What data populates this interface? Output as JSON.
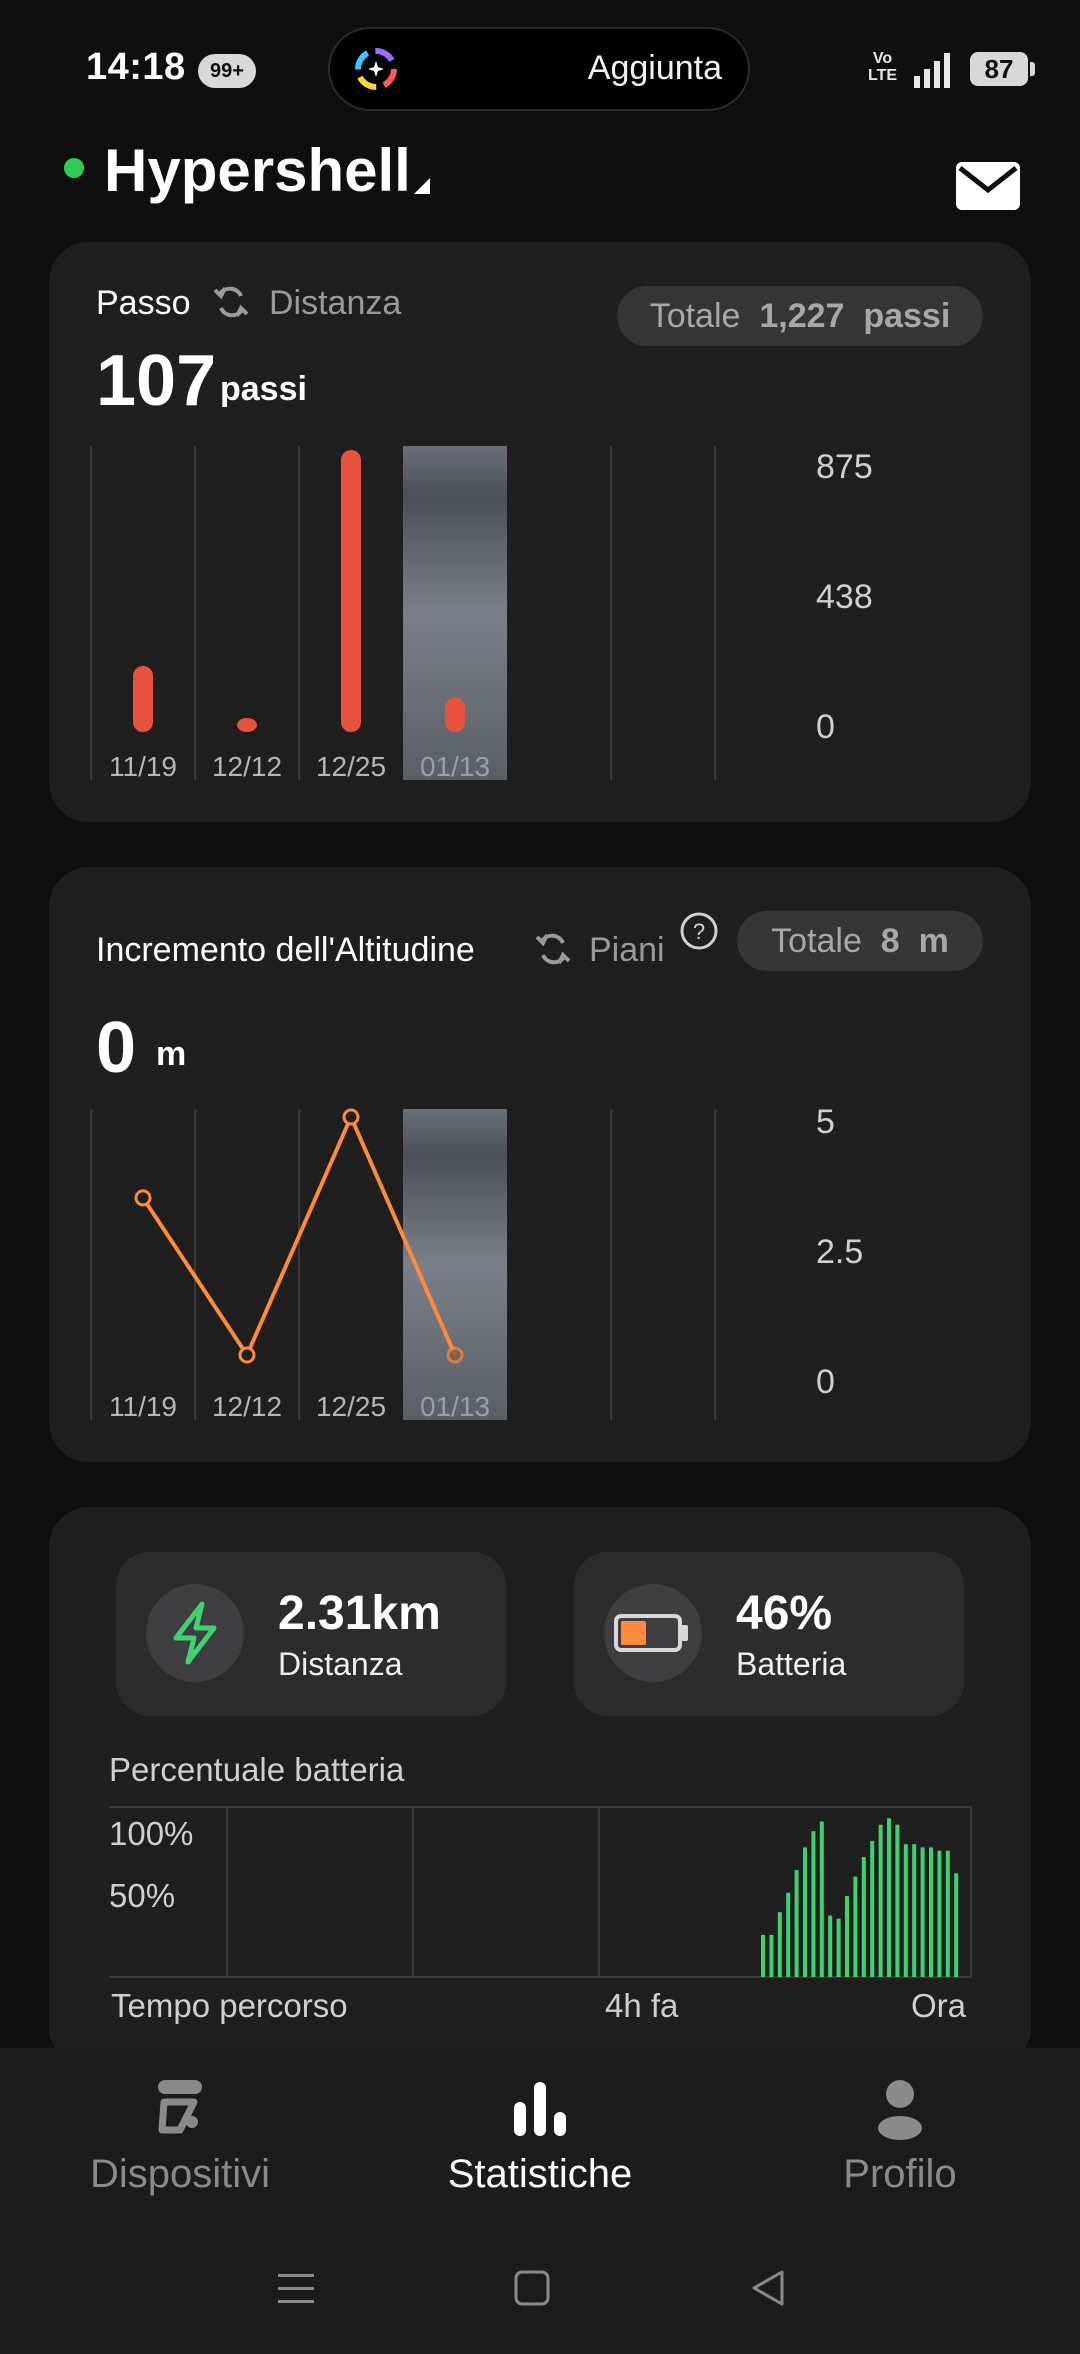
{
  "status_bar": {
    "time": "14:18",
    "notification_badge": "99+",
    "island_label": "Aggiunta",
    "network_label": "Vo\nLTE",
    "battery_level": "87"
  },
  "header": {
    "device_name": "Hypershell",
    "online_color": "#2ecc55"
  },
  "steps_card": {
    "title": "Passo",
    "switch_label": "Distanza",
    "total_label": "Totale",
    "total_value": "1,227",
    "total_unit": "passi",
    "value": "107",
    "unit": "passi",
    "chart_data": {
      "type": "bar",
      "categories": [
        "11/19",
        "12/12",
        "12/25",
        "01/13",
        "",
        ""
      ],
      "values": [
        205,
        40,
        875,
        107,
        null,
        null
      ],
      "highlighted_index": 3,
      "ylim": [
        0,
        875
      ],
      "y_ticks": [
        "875",
        "438",
        "0"
      ],
      "color": "#e8533f"
    }
  },
  "altitude_card": {
    "title": "Incremento dell'Altitudine",
    "switch_label": "Piani",
    "total_label": "Totale",
    "total_value": "8",
    "total_unit": "m",
    "value": "0",
    "unit": "m",
    "chart_data": {
      "type": "line",
      "categories": [
        "11/19",
        "12/12",
        "12/25",
        "01/13",
        "",
        ""
      ],
      "values": [
        3.3,
        0,
        5,
        0,
        null,
        null
      ],
      "highlighted_index": 3,
      "ylim": [
        0,
        5
      ],
      "y_ticks": [
        "5",
        "2.5",
        "0"
      ],
      "color": "#ff8a3d"
    }
  },
  "stats_card": {
    "distance_value": "2.31km",
    "distance_label": "Distanza",
    "battery_value": "46%",
    "battery_label": "Batteria",
    "battery_fraction": 0.46,
    "battery_chart_title": "Percentuale batteria",
    "battery_chart": {
      "type": "bar",
      "y_ticks": [
        "100%",
        "50%"
      ],
      "x_labels": [
        "Tempo percorso",
        "4h fa",
        "Ora"
      ],
      "color": "#3ed36e",
      "values": [
        26,
        26,
        40,
        52,
        66,
        80,
        90,
        96,
        38,
        36,
        50,
        62,
        74,
        84,
        94,
        98,
        94,
        82,
        82,
        80,
        80,
        78,
        78,
        64
      ]
    }
  },
  "bottom_nav": {
    "items": [
      {
        "label": "Dispositivi",
        "active": false
      },
      {
        "label": "Statistiche",
        "active": true
      },
      {
        "label": "Profilo",
        "active": false
      }
    ]
  }
}
